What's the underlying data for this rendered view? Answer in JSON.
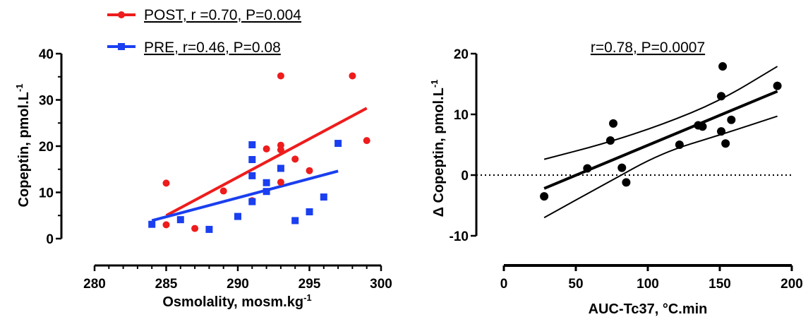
{
  "chart_data": [
    {
      "type": "scatter",
      "xlabel": "Osmolality, mosm.kg",
      "xlabel_sup": "-1",
      "ylabel": "Copeptin, pmol.L",
      "ylabel_sup": "-1",
      "xlim": [
        280,
        300
      ],
      "ylim": [
        0,
        40
      ],
      "xticks": [
        "280",
        "285",
        "290",
        "295",
        "300"
      ],
      "yticks": [
        "0",
        "10",
        "20",
        "30",
        "40"
      ],
      "legend_position": "top-left, above plot",
      "series": [
        {
          "name": "POST, r =0.70, P=0.004",
          "color": "#ee1c1c",
          "marker": "circle",
          "points": [
            [
              285,
              12
            ],
            [
              285,
              3
            ],
            [
              287,
              2.2
            ],
            [
              289,
              10.3
            ],
            [
              291,
              8.2
            ],
            [
              292,
              19.4
            ],
            [
              293,
              35.2
            ],
            [
              293,
              20.2
            ],
            [
              293,
              19.2
            ],
            [
              293,
              12.2
            ],
            [
              294,
              17.2
            ],
            [
              295,
              14.7
            ],
            [
              298,
              35.2
            ],
            [
              299,
              21.2
            ]
          ],
          "fit": [
            [
              285,
              5
            ],
            [
              299,
              28.2
            ]
          ]
        },
        {
          "name": "PRE, r=0.46, P=0.08",
          "color": "#1a3ff0",
          "marker": "square",
          "points": [
            [
              284,
              3.1
            ],
            [
              286,
              4.1
            ],
            [
              288,
              2
            ],
            [
              290,
              4.8
            ],
            [
              291,
              20.3
            ],
            [
              291,
              17.1
            ],
            [
              291,
              13.6
            ],
            [
              291,
              8
            ],
            [
              292,
              12.1
            ],
            [
              292,
              10.2
            ],
            [
              293,
              15.2
            ],
            [
              294,
              3.9
            ],
            [
              295,
              5.8
            ],
            [
              296,
              9
            ],
            [
              297,
              20.6
            ]
          ],
          "fit": [
            [
              284,
              3.9
            ],
            [
              297,
              14.6
            ]
          ]
        }
      ]
    },
    {
      "type": "scatter",
      "annotation": "r=0.78, P=0.0007",
      "xlabel": "AUC-Tc37, °C.min",
      "ylabel": "Δ Copeptin, pmol.L",
      "ylabel_sup": "-1",
      "xlim": [
        0,
        200
      ],
      "ylim": [
        -10,
        20
      ],
      "xticks": [
        "0",
        "50",
        "100",
        "150",
        "200"
      ],
      "yticks": [
        "-10",
        "0",
        "10",
        "20"
      ],
      "reference_line_y": 0,
      "series": [
        {
          "color": "#000000",
          "marker": "circle",
          "points": [
            [
              28,
              -3.5
            ],
            [
              58,
              1.1
            ],
            [
              74,
              5.7
            ],
            [
              76,
              8.5
            ],
            [
              82,
              1.2
            ],
            [
              85,
              -1.2
            ],
            [
              122,
              5
            ],
            [
              135,
              8.2
            ],
            [
              138,
              8
            ],
            [
              151,
              13
            ],
            [
              151,
              7.2
            ],
            [
              152,
              17.9
            ],
            [
              154,
              5.2
            ],
            [
              158,
              9.1
            ],
            [
              190,
              14.7
            ]
          ],
          "fit": [
            [
              28,
              -2.2
            ],
            [
              190,
              13.8
            ]
          ],
          "ci_upper": [
            [
              28,
              2.6
            ],
            [
              70,
              5.2
            ],
            [
              110,
              8.3
            ],
            [
              150,
              12.2
            ],
            [
              190,
              17.9
            ]
          ],
          "ci_lower": [
            [
              28,
              -7
            ],
            [
              70,
              -1.5
            ],
            [
              110,
              3.7
            ],
            [
              150,
              6.6
            ],
            [
              190,
              9.7
            ]
          ]
        }
      ]
    }
  ]
}
